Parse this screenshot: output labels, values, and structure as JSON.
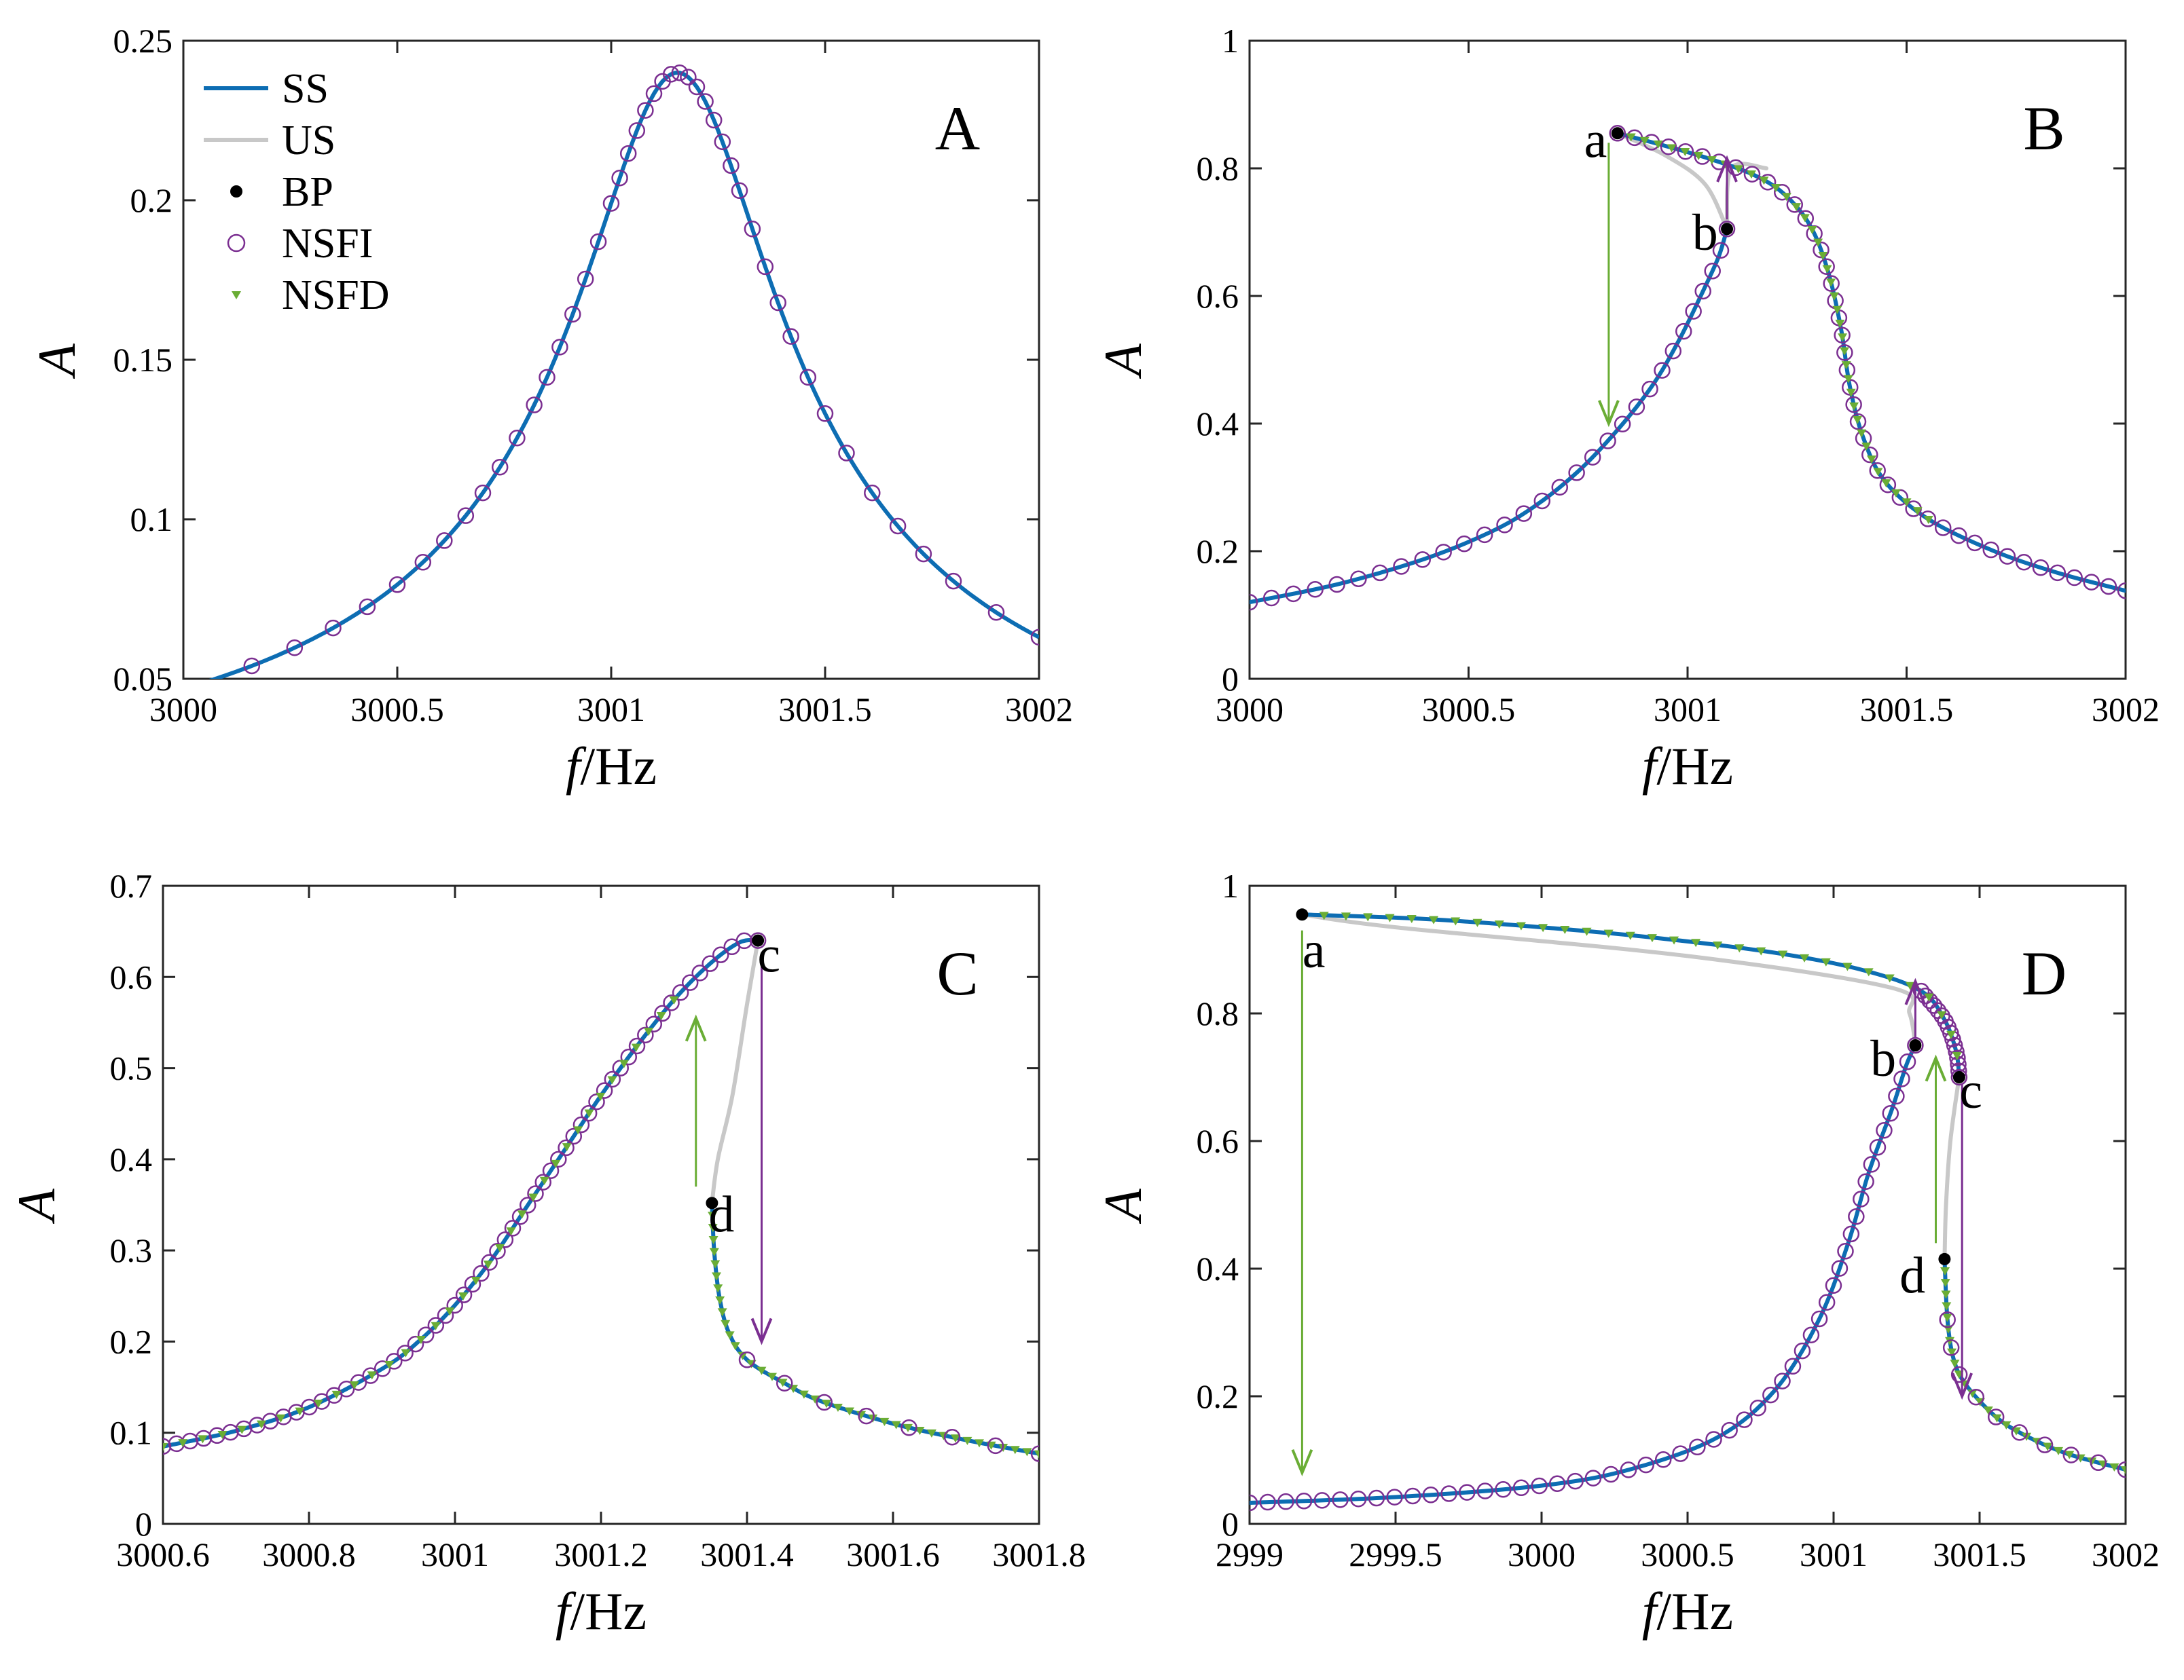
{
  "colors": {
    "ss": "#0d6db3",
    "us": "#c8c8c8",
    "bp": "#000000",
    "nsfi": "#7b2f91",
    "nsfd": "#6aad35",
    "axes": "#262626"
  },
  "legend": {
    "entries": [
      {
        "key": "ss",
        "label": "SS"
      },
      {
        "key": "us",
        "label": "US"
      },
      {
        "key": "bp",
        "label": "BP"
      },
      {
        "key": "nsfi",
        "label": "NSFI"
      },
      {
        "key": "nsfd",
        "label": "NSFD"
      }
    ]
  },
  "chart_data": [
    {
      "type": "line",
      "panel": "A",
      "xlabel_symbol": "f",
      "xlabel_unit": "/Hz",
      "ylabel": "A",
      "xlim": [
        3000,
        3002
      ],
      "ylim": [
        0.05,
        0.25
      ],
      "xticks": [
        "3000",
        "3000.5",
        "3001",
        "3001.5",
        "3002"
      ],
      "yticks": [
        "0.05",
        "0.1",
        "0.15",
        "0.2",
        "0.25"
      ],
      "grid": false,
      "legend_position": "top-left",
      "model": {
        "f0": 3001.155,
        "amax": 0.24,
        "gamma": 0.23
      },
      "ss_segments": [
        [
          3000,
          3002
        ]
      ],
      "nsfi_markers": [
        3000,
        3000.16,
        3000.26,
        3000.35,
        3000.43,
        3000.5,
        3000.56,
        3000.61,
        3000.66,
        3000.7,
        3000.74,
        3000.78,
        3000.82,
        3000.85,
        3000.88,
        3000.91,
        3000.94,
        3000.97,
        3001.0,
        3001.02,
        3001.04,
        3001.06,
        3001.08,
        3001.1,
        3001.12,
        3001.14,
        3001.16,
        3001.18,
        3001.2,
        3001.22,
        3001.24,
        3001.26,
        3001.28,
        3001.3,
        3001.33,
        3001.36,
        3001.39,
        3001.42,
        3001.46,
        3001.5,
        3001.55,
        3001.61,
        3001.67,
        3001.73,
        3001.8,
        3001.9,
        3002
      ],
      "labels": []
    },
    {
      "type": "line",
      "panel": "B",
      "xlabel_symbol": "f",
      "xlabel_unit": "/Hz",
      "ylabel": "A",
      "xlim": [
        3000,
        3002
      ],
      "ylim": [
        0,
        1
      ],
      "xticks": [
        "3000",
        "3000.5",
        "3001",
        "3001.5",
        "3002"
      ],
      "yticks": [
        "0",
        "0.2",
        "0.4",
        "0.6",
        "0.8",
        "1"
      ],
      "grid": false,
      "ss_lower": [
        [
          3000,
          0.12
        ],
        [
          3000.2,
          0.148
        ],
        [
          3000.4,
          0.188
        ],
        [
          3000.55,
          0.23
        ],
        [
          3000.65,
          0.27
        ],
        [
          3000.75,
          0.325
        ],
        [
          3000.84,
          0.39
        ],
        [
          3000.92,
          0.46
        ],
        [
          3000.98,
          0.53
        ],
        [
          3001.03,
          0.6
        ],
        [
          3001.07,
          0.66
        ],
        [
          3001.09,
          0.705
        ]
      ],
      "ss_upper": [
        [
          3000.84,
          0.855
        ],
        [
          3000.95,
          0.835
        ],
        [
          3001.05,
          0.815
        ],
        [
          3001.15,
          0.79
        ],
        [
          3001.22,
          0.76
        ],
        [
          3001.28,
          0.71
        ],
        [
          3001.32,
          0.64
        ],
        [
          3001.35,
          0.55
        ],
        [
          3001.37,
          0.46
        ],
        [
          3001.4,
          0.38
        ],
        [
          3001.45,
          0.31
        ],
        [
          3001.55,
          0.25
        ],
        [
          3001.7,
          0.2
        ],
        [
          3001.85,
          0.165
        ],
        [
          3002,
          0.138
        ]
      ],
      "us_curve": [
        [
          3000.84,
          0.855
        ],
        [
          3000.95,
          0.82
        ],
        [
          3001.04,
          0.775
        ],
        [
          3001.09,
          0.705
        ]
      ],
      "us_curve2": [
        [
          3001.09,
          0.705
        ],
        [
          3001.1,
          0.8
        ],
        [
          3001.18,
          0.8
        ]
      ],
      "bp": [
        {
          "name": "a",
          "x": 3000.84,
          "y": 0.855
        },
        {
          "name": "b",
          "x": 3001.09,
          "y": 0.705
        }
      ],
      "labels": [
        {
          "text": "a",
          "x": 3000.79,
          "y": 0.845
        },
        {
          "text": "b",
          "x": 3001.04,
          "y": 0.7
        }
      ],
      "arrows": [
        {
          "color": "nsfd",
          "from": [
            3000.82,
            0.84
          ],
          "to": [
            3000.82,
            0.4
          ]
        },
        {
          "color": "nsfi",
          "from": [
            3001.09,
            0.72
          ],
          "to": [
            3001.09,
            0.815
          ]
        }
      ]
    },
    {
      "type": "line",
      "panel": "C",
      "xlabel_symbol": "f",
      "xlabel_unit": "/Hz",
      "ylabel": "A",
      "xlim": [
        3000.6,
        3001.8
      ],
      "ylim": [
        0,
        0.7
      ],
      "xticks": [
        "3000.6",
        "3000.8",
        "3001",
        "3001.2",
        "3001.4",
        "3001.6",
        "3001.8"
      ],
      "yticks": [
        "0",
        "0.1",
        "0.2",
        "0.3",
        "0.4",
        "0.5",
        "0.6",
        "0.7"
      ],
      "grid": false,
      "ss_upper": [
        [
          3000.6,
          0.085
        ],
        [
          3000.7,
          0.102
        ],
        [
          3000.8,
          0.128
        ],
        [
          3000.9,
          0.17
        ],
        [
          3000.95,
          0.2
        ],
        [
          3001.0,
          0.24
        ],
        [
          3001.05,
          0.29
        ],
        [
          3001.1,
          0.35
        ],
        [
          3001.15,
          0.41
        ],
        [
          3001.2,
          0.47
        ],
        [
          3001.25,
          0.525
        ],
        [
          3001.3,
          0.575
        ],
        [
          3001.35,
          0.615
        ],
        [
          3001.39,
          0.638
        ],
        [
          3001.415,
          0.64
        ]
      ],
      "ss_lower": [
        [
          3001.352,
          0.352
        ],
        [
          3001.355,
          0.3
        ],
        [
          3001.362,
          0.25
        ],
        [
          3001.375,
          0.21
        ],
        [
          3001.4,
          0.18
        ],
        [
          3001.45,
          0.155
        ],
        [
          3001.5,
          0.135
        ],
        [
          3001.6,
          0.11
        ],
        [
          3001.7,
          0.092
        ],
        [
          3001.8,
          0.077
        ]
      ],
      "us_curve": [
        [
          3001.415,
          0.64
        ],
        [
          3001.4,
          0.57
        ],
        [
          3001.38,
          0.47
        ],
        [
          3001.36,
          0.4
        ],
        [
          3001.352,
          0.352
        ]
      ],
      "bp": [
        {
          "name": "c",
          "x": 3001.415,
          "y": 0.64
        },
        {
          "name": "d",
          "x": 3001.352,
          "y": 0.352
        }
      ],
      "labels": [
        {
          "text": "c",
          "x": 3001.43,
          "y": 0.625
        },
        {
          "text": "d",
          "x": 3001.365,
          "y": 0.34
        }
      ],
      "arrows": [
        {
          "color": "nsfd",
          "from": [
            3001.33,
            0.37
          ],
          "to": [
            3001.33,
            0.555
          ]
        },
        {
          "color": "nsfi",
          "from": [
            3001.42,
            0.62
          ],
          "to": [
            3001.42,
            0.2
          ]
        }
      ]
    },
    {
      "type": "line",
      "panel": "D",
      "xlabel_symbol": "f",
      "xlabel_unit": "/Hz",
      "ylabel": "A",
      "xlim": [
        2999,
        3002
      ],
      "ylim": [
        0,
        1
      ],
      "xticks": [
        "2999",
        "2999.5",
        "3000",
        "3000.5",
        "3001",
        "3001.5",
        "3002"
      ],
      "yticks": [
        "0",
        "0.2",
        "0.4",
        "0.6",
        "0.8",
        "1"
      ],
      "grid": false,
      "ss_upper": [
        [
          2999.18,
          0.955
        ],
        [
          2999.6,
          0.948
        ],
        [
          3000,
          0.935
        ],
        [
          3000.4,
          0.918
        ],
        [
          3000.8,
          0.895
        ],
        [
          3001.1,
          0.868
        ],
        [
          3001.3,
          0.835
        ],
        [
          3001.38,
          0.79
        ],
        [
          3001.42,
          0.74
        ],
        [
          3001.43,
          0.7
        ]
      ],
      "ss_lower": [
        [
          2999,
          0.033
        ],
        [
          2999.5,
          0.042
        ],
        [
          3000,
          0.06
        ],
        [
          3000.3,
          0.085
        ],
        [
          3000.6,
          0.135
        ],
        [
          3000.8,
          0.21
        ],
        [
          3000.95,
          0.32
        ],
        [
          3001.05,
          0.44
        ],
        [
          3001.12,
          0.55
        ],
        [
          3001.2,
          0.65
        ],
        [
          3001.25,
          0.72
        ],
        [
          3001.28,
          0.75
        ]
      ],
      "ss_right": [
        [
          3001.38,
          0.415
        ],
        [
          3001.39,
          0.32
        ],
        [
          3001.41,
          0.26
        ],
        [
          3001.45,
          0.22
        ],
        [
          3001.55,
          0.17
        ],
        [
          3001.65,
          0.14
        ],
        [
          3001.8,
          0.11
        ],
        [
          3002,
          0.085
        ]
      ],
      "us_curve": [
        [
          3001.28,
          0.75
        ],
        [
          3001.26,
          0.8
        ],
        [
          3001.2,
          0.84
        ],
        [
          3000.5,
          0.89
        ],
        [
          2999.5,
          0.935
        ],
        [
          2999.18,
          0.955
        ]
      ],
      "us_curve2": [
        [
          3001.43,
          0.7
        ],
        [
          3001.4,
          0.6
        ],
        [
          3001.385,
          0.5
        ],
        [
          3001.38,
          0.415
        ]
      ],
      "bp": [
        {
          "name": "a",
          "x": 2999.18,
          "y": 0.955
        },
        {
          "name": "b",
          "x": 3001.28,
          "y": 0.75
        },
        {
          "name": "c",
          "x": 3001.43,
          "y": 0.7
        },
        {
          "name": "d",
          "x": 3001.38,
          "y": 0.415
        }
      ],
      "labels": [
        {
          "text": "a",
          "x": 2999.22,
          "y": 0.9
        },
        {
          "text": "b",
          "x": 3001.17,
          "y": 0.73
        },
        {
          "text": "c",
          "x": 3001.47,
          "y": 0.68
        },
        {
          "text": "d",
          "x": 3001.27,
          "y": 0.39
        }
      ],
      "arrows": [
        {
          "color": "nsfd",
          "from": [
            2999.18,
            0.93
          ],
          "to": [
            2999.18,
            0.08
          ]
        },
        {
          "color": "nsfi",
          "from": [
            3001.28,
            0.76
          ],
          "to": [
            3001.28,
            0.85
          ]
        },
        {
          "color": "nsfd",
          "from": [
            3001.35,
            0.44
          ],
          "to": [
            3001.35,
            0.73
          ]
        },
        {
          "color": "nsfi",
          "from": [
            3001.44,
            0.69
          ],
          "to": [
            3001.44,
            0.2
          ]
        }
      ]
    }
  ]
}
